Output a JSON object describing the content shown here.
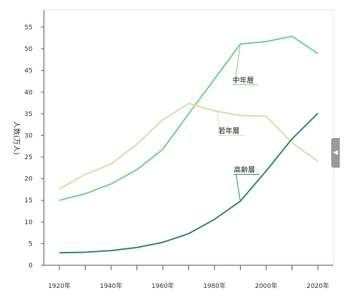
{
  "chart_data": {
    "type": "line",
    "title": "",
    "xlabel": "",
    "ylabel": "人数(万人)",
    "x": [
      1920,
      1930,
      1940,
      1950,
      1960,
      1970,
      1980,
      1990,
      2000,
      2010,
      2020
    ],
    "x_tick_labels": [
      "1920年",
      "1940年",
      "1960年",
      "1980年",
      "2000年",
      "2020年"
    ],
    "y_ticks": [
      0,
      5,
      10,
      15,
      20,
      25,
      30,
      35,
      40,
      45,
      50,
      55
    ],
    "xlim": [
      1914,
      2026
    ],
    "ylim": [
      0,
      59
    ],
    "grid": false,
    "series": [
      {
        "name": "中年層",
        "color": "#6fd48a",
        "values": [
          15.0,
          16.5,
          18.8,
          22.1,
          26.8,
          35.0,
          43.0,
          51.1,
          51.7,
          52.9,
          48.9
        ]
      },
      {
        "name": "若年層",
        "color": "#d6dfa4",
        "values": [
          17.6,
          21.0,
          23.4,
          28.0,
          33.6,
          37.4,
          35.7,
          34.6,
          34.4,
          28.3,
          24.0
        ]
      },
      {
        "name": "高齢層",
        "color": "#2e8b6e",
        "values": [
          2.9,
          3.0,
          3.4,
          4.1,
          5.3,
          7.3,
          10.6,
          14.8,
          21.8,
          29.2,
          35.1
        ]
      }
    ]
  },
  "ui": {
    "collapse_icon": "chevron-left-icon",
    "collapse_glyph": "◀"
  }
}
